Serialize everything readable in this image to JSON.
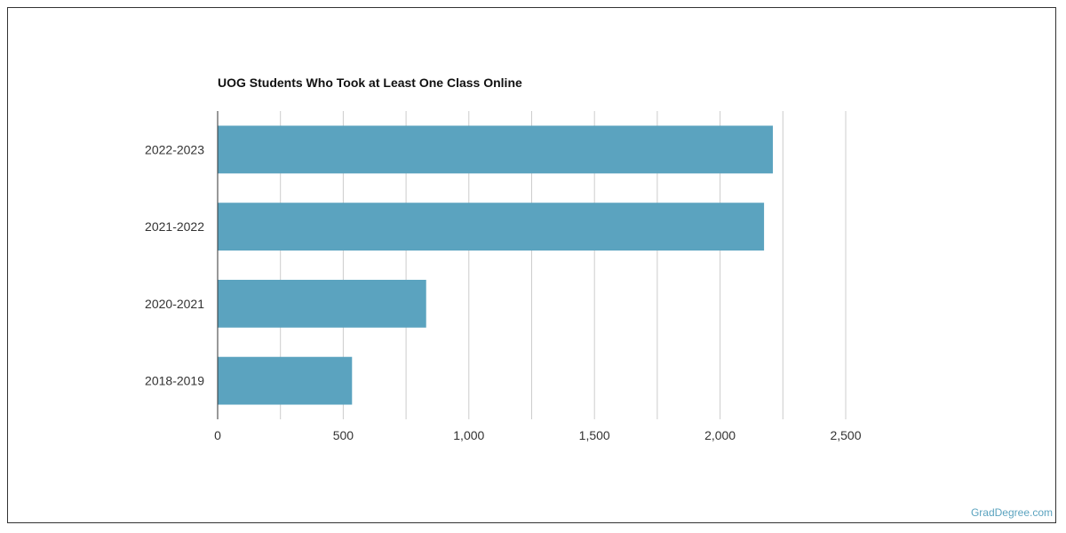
{
  "chart_data": {
    "type": "bar",
    "orientation": "horizontal",
    "title": "UOG Students Who Took at Least One Class Online",
    "categories": [
      "2022-2023",
      "2021-2022",
      "2020-2021",
      "2018-2019"
    ],
    "values": [
      2210,
      2175,
      830,
      535
    ],
    "xlim": [
      0,
      2500
    ],
    "x_ticks": [
      0,
      500,
      1000,
      1500,
      2000,
      2500
    ],
    "x_tick_labels": [
      "0",
      "500",
      "1,000",
      "1,500",
      "2,000",
      "2,500"
    ],
    "xlabel": "",
    "ylabel": "",
    "grid": true,
    "legend": "none",
    "bar_color": "#5ba3bf"
  },
  "footer": {
    "credit": "GradDegree.com"
  },
  "colors": {
    "bar": "#5ba3bf",
    "grid": "#cccccc",
    "axis": "#333333",
    "credit": "#5ba3bf"
  }
}
